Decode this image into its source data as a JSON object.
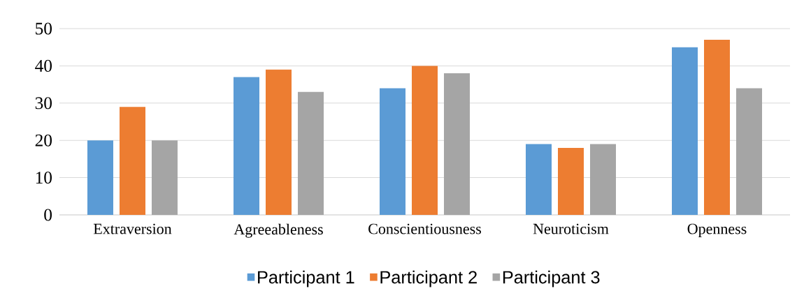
{
  "chart_data": {
    "type": "bar",
    "categories": [
      "Extraversion",
      "Agreeableness",
      "Conscientiousness",
      "Neuroticism",
      "Openness"
    ],
    "series": [
      {
        "name": "Participant 1",
        "color": "#5b9bd5",
        "values": [
          20,
          37,
          34,
          19,
          45
        ]
      },
      {
        "name": "Participant 2",
        "color": "#ed7d31",
        "values": [
          29,
          39,
          40,
          18,
          47
        ]
      },
      {
        "name": "Participant 3",
        "color": "#a5a5a5",
        "values": [
          20,
          33,
          38,
          19,
          34
        ]
      }
    ],
    "ylim": [
      0,
      50
    ],
    "yticks": [
      0,
      10,
      20,
      30,
      40,
      50
    ],
    "grid": "y",
    "legend": "bottom"
  }
}
